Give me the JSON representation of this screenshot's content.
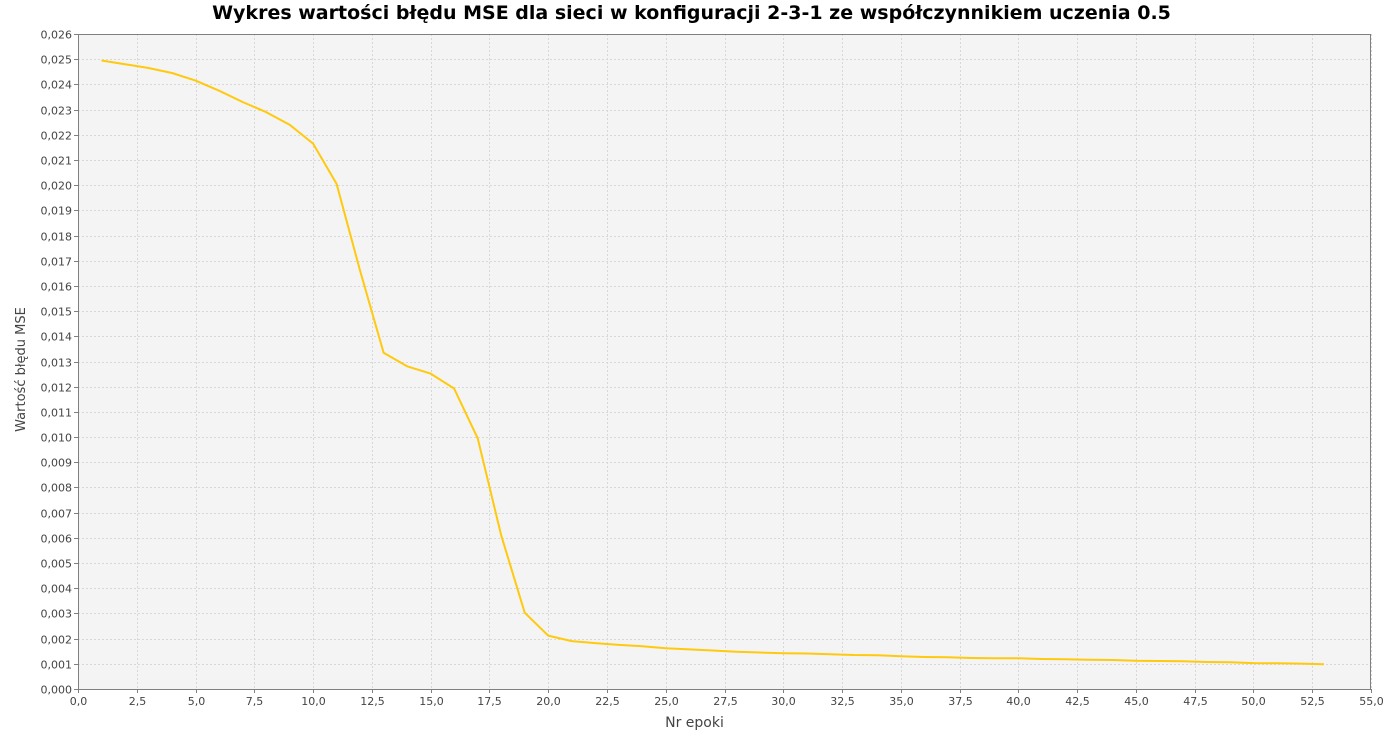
{
  "chart_data": {
    "type": "line",
    "title": "Wykres wartości błędu MSE dla sieci w konfiguracji 2-3-1 ze współczynnikiem uczenia 0.5",
    "xlabel": "Nr epoki",
    "ylabel": "Wartość błędu MSE",
    "xlim": [
      0,
      55
    ],
    "ylim": [
      0,
      0.026
    ],
    "x_ticks": [
      "0,0",
      "2,5",
      "5,0",
      "7,5",
      "10,0",
      "12,5",
      "15,0",
      "17,5",
      "20,0",
      "22,5",
      "25,0",
      "27,5",
      "30,0",
      "32,5",
      "35,0",
      "37,5",
      "40,0",
      "42,5",
      "45,0",
      "47,5",
      "50,0",
      "52,5",
      "55,0"
    ],
    "y_ticks": [
      "0,000",
      "0,001",
      "0,002",
      "0,003",
      "0,004",
      "0,005",
      "0,006",
      "0,007",
      "0,008",
      "0,009",
      "0,010",
      "0,011",
      "0,012",
      "0,013",
      "0,014",
      "0,015",
      "0,016",
      "0,017",
      "0,018",
      "0,019",
      "0,020",
      "0,021",
      "0,022",
      "0,023",
      "0,024",
      "0,025",
      "0,026"
    ],
    "grid": true,
    "legend": "none",
    "series": [
      {
        "color": "#ffc90e",
        "x": [
          1,
          2,
          3,
          4,
          5,
          6,
          7,
          8,
          9,
          10,
          11,
          12,
          13,
          14,
          15,
          16,
          17,
          18,
          19,
          20,
          21,
          22,
          23,
          24,
          25,
          26,
          27,
          28,
          29,
          30,
          31,
          32,
          33,
          34,
          35,
          36,
          37,
          38,
          39,
          40,
          41,
          42,
          43,
          44,
          45,
          46,
          47,
          48,
          49,
          50,
          51,
          52,
          53
        ],
        "y": [
          0.02495,
          0.0248,
          0.02465,
          0.02445,
          0.02415,
          0.02375,
          0.0233,
          0.0229,
          0.0224,
          0.02165,
          0.02005,
          0.0166,
          0.01335,
          0.01281,
          0.01252,
          0.01193,
          0.00995,
          0.0061,
          0.00303,
          0.00212,
          0.0019,
          0.00182,
          0.00175,
          0.0017,
          0.00162,
          0.00157,
          0.00153,
          0.00148,
          0.00145,
          0.00142,
          0.00141,
          0.00138,
          0.00135,
          0.00134,
          0.0013,
          0.00127,
          0.00126,
          0.00123,
          0.00122,
          0.00122,
          0.00119,
          0.00118,
          0.00116,
          0.00115,
          0.00112,
          0.00111,
          0.0011,
          0.00107,
          0.00106,
          0.00103,
          0.00102,
          0.00101,
          0.00098
        ]
      }
    ]
  },
  "style": {
    "plot_background": "#f4f4f4",
    "plot_border": "#808080",
    "grid_color": "#d8d8d8",
    "axis_text_color": "#444444"
  }
}
